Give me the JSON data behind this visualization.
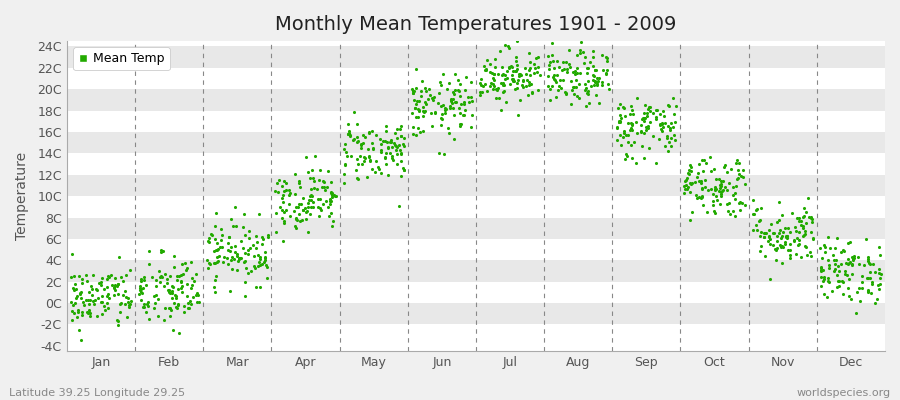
{
  "title": "Monthly Mean Temperatures 1901 - 2009",
  "ylabel": "Temperature",
  "subtitle_left": "Latitude 39.25 Longitude 29.25",
  "subtitle_right": "worldspecies.org",
  "legend_label": "Mean Temp",
  "dot_color": "#22AA00",
  "background_color": "#f0f0f0",
  "plot_bg_color": "#ffffff",
  "band_color_light": "#ffffff",
  "band_color_dark": "#e8e8e8",
  "ytick_labels": [
    "-4C",
    "-2C",
    "0C",
    "2C",
    "4C",
    "6C",
    "8C",
    "10C",
    "12C",
    "14C",
    "16C",
    "18C",
    "20C",
    "22C",
    "24C"
  ],
  "ytick_values": [
    -4,
    -2,
    0,
    2,
    4,
    6,
    8,
    10,
    12,
    14,
    16,
    18,
    20,
    22,
    24
  ],
  "ylim": [
    -4.5,
    24.5
  ],
  "months": [
    "Jan",
    "Feb",
    "Mar",
    "Apr",
    "May",
    "Jun",
    "Jul",
    "Aug",
    "Sep",
    "Oct",
    "Nov",
    "Dec"
  ],
  "month_centers": [
    0.5,
    1.5,
    2.5,
    3.5,
    4.5,
    5.5,
    6.5,
    7.5,
    8.5,
    9.5,
    10.5,
    11.5
  ],
  "month_boundaries": [
    0,
    1,
    2,
    3,
    4,
    5,
    6,
    7,
    8,
    9,
    10,
    11,
    12
  ],
  "xlim": [
    0,
    12
  ],
  "n_years": 109,
  "mean_temps": [
    0.5,
    1.0,
    4.8,
    9.8,
    14.3,
    18.3,
    21.3,
    21.0,
    16.5,
    11.0,
    6.5,
    3.0
  ],
  "temp_std": [
    1.5,
    1.8,
    1.5,
    1.5,
    1.5,
    1.5,
    1.3,
    1.3,
    1.5,
    1.5,
    1.5,
    1.5
  ],
  "seed": 42,
  "title_fontsize": 14,
  "axis_fontsize": 9,
  "ylabel_fontsize": 10,
  "dot_size": 4,
  "grid_color": "#cccccc",
  "dashed_line_color": "#888888",
  "tick_color": "#555555",
  "spine_color": "#aaaaaa"
}
